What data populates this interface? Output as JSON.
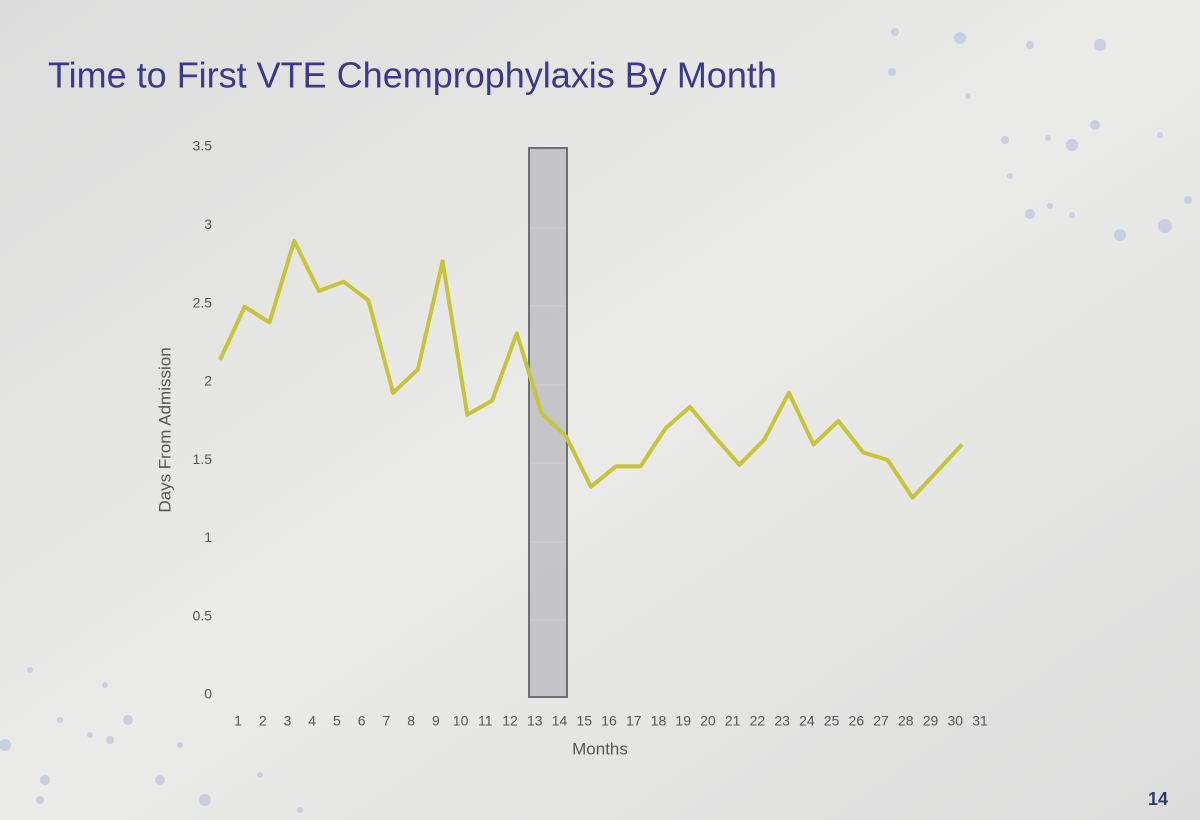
{
  "page_number": "14",
  "chart_data": {
    "type": "line",
    "title": "Time to First VTE Chemprophylaxis By Month",
    "x_label": "Months",
    "y_label": "Days From Admission",
    "categories": [
      "1",
      "2",
      "3",
      "4",
      "5",
      "6",
      "7",
      "8",
      "9",
      "10",
      "11",
      "12",
      "13",
      "14",
      "15",
      "16",
      "17",
      "18",
      "19",
      "20",
      "21",
      "22",
      "23",
      "24",
      "25",
      "26",
      "27",
      "28",
      "29",
      "30",
      "31"
    ],
    "series": [
      {
        "name": "Days From Admission",
        "color": "#c9c33a",
        "values": [
          2.14,
          2.48,
          2.38,
          2.9,
          2.58,
          2.64,
          2.52,
          1.93,
          2.08,
          2.77,
          1.79,
          1.88,
          2.31,
          1.8,
          1.65,
          1.33,
          1.46,
          1.46,
          1.7,
          1.84,
          1.65,
          1.47,
          1.63,
          1.93,
          1.6,
          1.75,
          1.55,
          1.5,
          1.26,
          1.43,
          1.6
        ]
      }
    ],
    "ylim": [
      0,
      3.5
    ],
    "yticks": [
      0,
      0.5,
      1,
      1.5,
      2,
      2.5,
      3,
      3.5
    ],
    "grid": false
  }
}
